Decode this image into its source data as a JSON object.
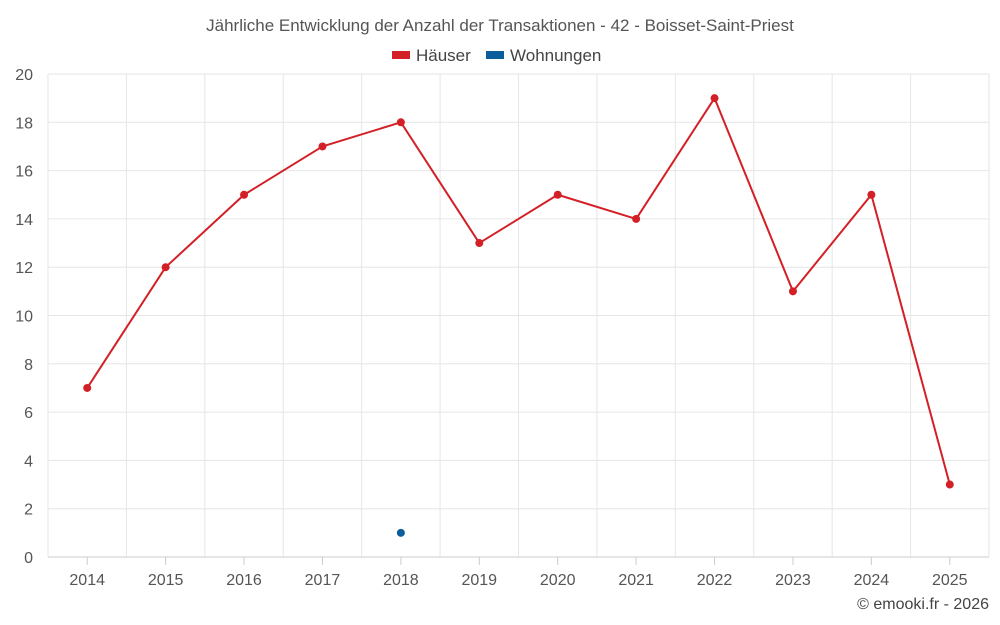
{
  "chart_data": {
    "type": "line",
    "title": "Jährliche Entwicklung der Anzahl der Transaktionen - 42 - Boisset-Saint-Priest",
    "categories": [
      "2014",
      "2015",
      "2016",
      "2017",
      "2018",
      "2019",
      "2020",
      "2021",
      "2022",
      "2023",
      "2024",
      "2025"
    ],
    "series": [
      {
        "name": "Häuser",
        "color": "#d32027",
        "values": [
          7,
          12,
          15,
          17,
          18,
          13,
          15,
          14,
          19,
          11,
          15,
          3
        ]
      },
      {
        "name": "Wohnungen",
        "color": "#0b5e9b",
        "values": [
          null,
          null,
          null,
          null,
          1,
          null,
          null,
          null,
          null,
          null,
          null,
          null
        ]
      }
    ],
    "ylim": [
      0,
      20
    ],
    "yticks": [
      0,
      2,
      4,
      6,
      8,
      10,
      12,
      14,
      16,
      18,
      20
    ],
    "xlabel": "",
    "ylabel": "",
    "legend_position": "top-center",
    "grid": true
  },
  "credit": "© emooki.fr - 2026"
}
